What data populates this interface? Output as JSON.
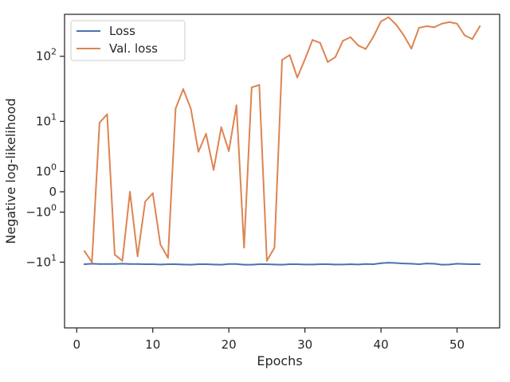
{
  "chart_data": {
    "type": "line",
    "xlabel": "Epochs",
    "ylabel": "Negative log-likelihood",
    "yscale": "symlog",
    "xlim": [
      -1.6,
      55.6
    ],
    "ylim": [
      -102,
      420
    ],
    "x_ticks": [
      {
        "value": 0,
        "label": "0"
      },
      {
        "value": 10,
        "label": "10"
      },
      {
        "value": 20,
        "label": "20"
      },
      {
        "value": 30,
        "label": "30"
      },
      {
        "value": 40,
        "label": "40"
      },
      {
        "value": 50,
        "label": "50"
      }
    ],
    "y_ticks": [
      {
        "value": 100,
        "base": "10",
        "exp": "2"
      },
      {
        "value": 10,
        "base": "10",
        "exp": "1"
      },
      {
        "value": 1,
        "base": "10",
        "exp": "0"
      },
      {
        "value": 0,
        "base": "0",
        "exp": ""
      },
      {
        "value": -1,
        "base": "−10",
        "exp": "0"
      },
      {
        "value": -10,
        "base": "−10",
        "exp": "1"
      }
    ],
    "legend_position": "top-left",
    "grid": false,
    "series": [
      {
        "name": "Loss",
        "color": "#4c72b0",
        "x": [
          1,
          2,
          3,
          4,
          5,
          6,
          7,
          8,
          9,
          10,
          11,
          12,
          13,
          14,
          15,
          16,
          17,
          18,
          19,
          20,
          21,
          22,
          23,
          24,
          25,
          26,
          27,
          28,
          29,
          30,
          31,
          32,
          33,
          34,
          35,
          36,
          37,
          38,
          39,
          40,
          41,
          42,
          43,
          44,
          45,
          46,
          47,
          48,
          49,
          50,
          51,
          52,
          53
        ],
        "y": [
          -10.8,
          -10.6,
          -10.7,
          -10.7,
          -10.7,
          -10.6,
          -10.7,
          -10.7,
          -10.8,
          -10.8,
          -10.9,
          -10.8,
          -10.8,
          -10.9,
          -11.0,
          -10.8,
          -10.8,
          -10.9,
          -11.0,
          -10.7,
          -10.7,
          -11.0,
          -11.0,
          -10.8,
          -10.8,
          -10.9,
          -11.0,
          -10.8,
          -10.8,
          -10.9,
          -10.9,
          -10.8,
          -10.8,
          -10.9,
          -10.9,
          -10.8,
          -10.9,
          -10.7,
          -10.8,
          -10.4,
          -10.2,
          -10.3,
          -10.5,
          -10.6,
          -10.8,
          -10.5,
          -10.6,
          -11.0,
          -10.9,
          -10.6,
          -10.7,
          -10.8,
          -10.8
        ]
      },
      {
        "name": "Val. loss",
        "color": "#dd8452",
        "x": [
          1,
          2,
          3,
          4,
          5,
          6,
          7,
          8,
          9,
          10,
          11,
          12,
          13,
          14,
          15,
          16,
          17,
          18,
          19,
          20,
          21,
          22,
          23,
          24,
          25,
          26,
          27,
          28,
          29,
          30,
          31,
          32,
          33,
          34,
          35,
          36,
          37,
          38,
          39,
          40,
          41,
          42,
          43,
          44,
          45,
          46,
          47,
          48,
          49,
          50,
          51,
          52,
          53
        ],
        "y": [
          -6.5,
          -10.0,
          9.5,
          13,
          -7.5,
          -9.5,
          0.0,
          -8.0,
          -0.4,
          -0.05,
          -5.0,
          -8.5,
          16,
          32,
          16,
          2.9,
          6.2,
          1.1,
          8.0,
          3.0,
          18,
          -5.7,
          34,
          37,
          -9.5,
          -5.7,
          88,
          104,
          48,
          90,
          175,
          158,
          82,
          97,
          170,
          192,
          145,
          128,
          195,
          330,
          380,
          295,
          205,
          130,
          265,
          280,
          270,
          305,
          322,
          305,
          205,
          180,
          280
        ]
      }
    ]
  }
}
